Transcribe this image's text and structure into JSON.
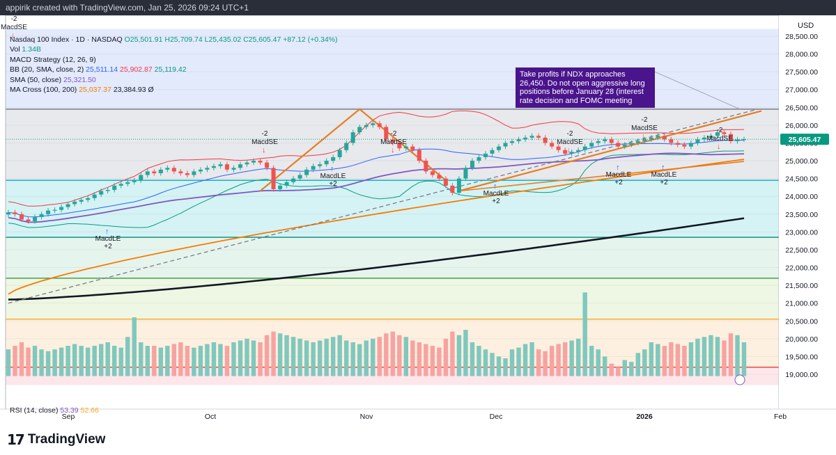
{
  "header": {
    "text": "appirik created with TradingView.com, Jan 25, 2026 09:24 UTC+1"
  },
  "legend": {
    "symbol": "Nasdaq 100 Index · 1D · NASDAQ",
    "ohlc": "O25,501.91 H25,709.74 L25,435.02 C25,605.47 +87.12 (+0.34%)",
    "vol_label": "Vol",
    "vol_value": "1.34B",
    "macd": "MACD Strategy (12, 26, 9)",
    "bb_label": "BB (20, SMA, close, 2)",
    "bb_basis": "25,511.14",
    "bb_upper": "25,902.87",
    "bb_lower": "25,119.42",
    "sma_label": "SMA (50, close)",
    "sma_value": "25,321.50",
    "ma_label": "MA Cross (100, 200)",
    "ma_fast": "25,037.37",
    "ma_slow": "23,384.93",
    "ma_extra": "Ø"
  },
  "rsi": {
    "label": "RSI (14, close)",
    "value1": "53.39",
    "value2": "52.66"
  },
  "note": {
    "text": "Take profits if NDX approaches 26,450. Do not open aggressive long positions before January 28 (interest rate decision and FOMC meeting"
  },
  "price_axis": {
    "currency": "USD",
    "ticks": [
      "28,500.00",
      "28,000.00",
      "27,500.00",
      "27,000.00",
      "26,500.00",
      "26,000.00",
      "25,500.00",
      "25,000.00",
      "24,500.00",
      "24,000.00",
      "23,500.00",
      "23,000.00",
      "22,500.00",
      "22,000.00",
      "21,500.00",
      "21,000.00",
      "20,500.00",
      "20,000.00",
      "19,500.00",
      "19,000.00"
    ],
    "last_price": "25,605.47"
  },
  "time_axis": {
    "labels": [
      "Sep",
      "Oct",
      "Nov",
      "Dec",
      "2026",
      "Feb"
    ]
  },
  "signals": [
    {
      "text": "MacdSE",
      "n": "-2"
    },
    {
      "text": "MacdLE",
      "n": "+2"
    },
    {
      "text": "MacdSE",
      "n": "-2"
    },
    {
      "text": "MacdLE",
      "n": "+2"
    },
    {
      "text": "MacdSE",
      "n": "-2"
    },
    {
      "text": "MacdLE",
      "n": "+2"
    },
    {
      "text": "MacdSE",
      "n": "-2"
    },
    {
      "text": "MacdLE",
      "n": "+2"
    },
    {
      "text": "MacdSE",
      "n": "-2"
    },
    {
      "text": "MacdLE",
      "n": "+2"
    },
    {
      "text": "MacdSE",
      "n": "-2"
    }
  ],
  "chart_data": {
    "type": "candlestick",
    "colors": {
      "up": "#26a69a",
      "down": "#ef5350",
      "bb": "#f23645",
      "bb_lower": "#089981",
      "sma50": "#7e57c2",
      "ma100": "#f57c00",
      "ma200": "#131722"
    },
    "x_range": [
      "Aug 25, 2025",
      "Feb 2026"
    ],
    "ylim": [
      18700,
      28700
    ],
    "y_ticks": [
      19000,
      19500,
      20000,
      20500,
      21000,
      21500,
      22000,
      22500,
      23000,
      23500,
      24000,
      24500,
      25000,
      25500,
      26000,
      26500,
      27000,
      27500,
      28000,
      28500
    ],
    "closes": [
      23550,
      23500,
      23350,
      23300,
      23420,
      23500,
      23600,
      23620,
      23700,
      23780,
      23850,
      23900,
      23950,
      24050,
      24150,
      24180,
      24300,
      24350,
      24400,
      24450,
      24600,
      24700,
      24650,
      24750,
      24800,
      24700,
      24650,
      24600,
      24700,
      24750,
      24800,
      24850,
      24900,
      24750,
      24800,
      24900,
      24950,
      25000,
      24950,
      24800,
      24200,
      24300,
      24400,
      24500,
      24600,
      24750,
      24850,
      24900,
      25000,
      25100,
      25300,
      25500,
      25800,
      25950,
      26000,
      26050,
      25950,
      25600,
      25500,
      25350,
      25400,
      25300,
      25000,
      24700,
      24600,
      24500,
      24300,
      24100,
      24500,
      24800,
      25000,
      25100,
      25200,
      25300,
      25400,
      25500,
      25550,
      25600,
      25650,
      25700,
      25650,
      25500,
      25400,
      25300,
      25200,
      25250,
      25300,
      25400,
      25500,
      25550,
      25600,
      25500,
      25400,
      25450,
      25500,
      25550,
      25600,
      25650,
      25700,
      25600,
      25500,
      25450,
      25400,
      25500,
      25600,
      25650,
      25700,
      25800,
      25750,
      25550,
      25600,
      25605
    ],
    "volumes": [
      19700,
      19800,
      19900,
      19750,
      19800,
      19700,
      19650,
      19700,
      19750,
      19800,
      19850,
      19800,
      19750,
      19800,
      19850,
      19900,
      19800,
      19750,
      20050,
      20600,
      19900,
      19800,
      19800,
      19750,
      19800,
      19850,
      19900,
      19800,
      19750,
      19800,
      19850,
      19900,
      19850,
      19800,
      19900,
      19950,
      20000,
      19950,
      19900,
      20100,
      20200,
      20150,
      20100,
      20050,
      20000,
      19950,
      19900,
      19950,
      20000,
      20050,
      20100,
      19950,
      19900,
      19850,
      19950,
      20000,
      20050,
      20150,
      20200,
      20100,
      20050,
      19950,
      19900,
      19850,
      19800,
      19750,
      20000,
      20200,
      20100,
      20250,
      19900,
      19800,
      19700,
      19600,
      19500,
      19450,
      19700,
      19750,
      19850,
      19900,
      19700,
      19650,
      19800,
      19850,
      19900,
      19950,
      20000,
      21300,
      19800,
      19700,
      19500,
      19300,
      19200,
      19400,
      19350,
      19600,
      19700,
      19900,
      19850,
      19800,
      19900,
      19850,
      19800,
      19900,
      20000,
      20050,
      20100,
      20050,
      19950,
      20150,
      20100,
      19900
    ]
  }
}
